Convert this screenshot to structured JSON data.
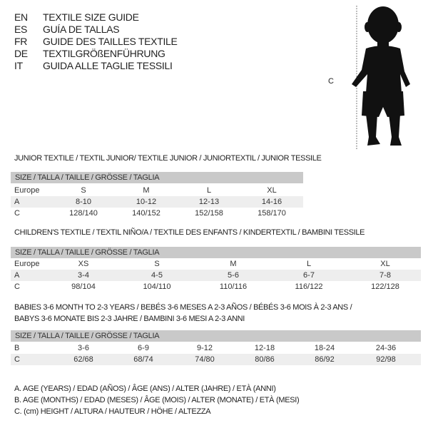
{
  "languages": [
    {
      "code": "EN",
      "name": "TEXTILE SIZE GUIDE"
    },
    {
      "code": "ES",
      "name": "GUÍA DE TALLAS"
    },
    {
      "code": "FR",
      "name": "GUIDE DES TAILLES TEXTILE"
    },
    {
      "code": "DE",
      "name": "TEXTILGRÖßENFÜHRUNG"
    },
    {
      "code": "IT",
      "name": "GUIDA ALLE TAGLIE TESSILI"
    }
  ],
  "figure": {
    "label": "C",
    "icon": "child-silhouette"
  },
  "size_header": "SIZE / TALLA / TAILLE / GRÖSSE / TAGLIA",
  "junior": {
    "title": "JUNIOR TEXTILE / TEXTIL JUNIOR/ TEXTILE JUNIOR / JUNIORTEXTIL / JUNIOR TESSILE",
    "rows": [
      {
        "label": "Europe",
        "cells": [
          "S",
          "M",
          "L",
          "XL"
        ]
      },
      {
        "label": "A",
        "cells": [
          "8-10",
          "10-12",
          "12-13",
          "14-16"
        ]
      },
      {
        "label": "C",
        "cells": [
          "128/140",
          "140/152",
          "152/158",
          "158/170"
        ]
      }
    ]
  },
  "children": {
    "title": "CHILDREN'S TEXTILE / TEXTIL NIÑO/A / TEXTILE DES ENFANTS / KINDERTEXTIL / BAMBINI TESSILE",
    "rows": [
      {
        "label": "Europe",
        "cells": [
          "XS",
          "S",
          "M",
          "L",
          "XL"
        ]
      },
      {
        "label": "A",
        "cells": [
          "3-4",
          "4-5",
          "5-6",
          "6-7",
          "7-8"
        ]
      },
      {
        "label": "C",
        "cells": [
          "98/104",
          "104/110",
          "110/116",
          "116/122",
          "122/128"
        ]
      }
    ]
  },
  "babies": {
    "title_line1": "BABIES 3-6 MONTH TO 2-3 YEARS / BEBÉS 3-6 MESES A 2-3 AÑOS / BÉBÉS 3-6 MOIS À 2-3 ANS /",
    "title_line2": "BABYS 3-6 MONATE BIS 2-3 JAHRE / BAMBINI 3-6 MESI A 2-3 ANNI",
    "rows": [
      {
        "label": "B",
        "cells": [
          "3-6",
          "6-9",
          "9-12",
          "12-18",
          "18-24",
          "24-36"
        ]
      },
      {
        "label": "C",
        "cells": [
          "62/68",
          "68/74",
          "74/80",
          "80/86",
          "86/92",
          "92/98"
        ]
      }
    ]
  },
  "legend": [
    "A. AGE (YEARS) / EDAD (AÑOS) / ÂGE (ANS) / ALTER (JAHRE) / ETÀ (ANNI)",
    "B. AGE (MONTHS) / EDAD (MESES) / ÂGE (MOIS) / ALTER (MONATE) / ETÀ (MESI)",
    "C. (cm) HEIGHT / ALTURA / HAUTEUR / HÖHE / ALTEZZA"
  ]
}
